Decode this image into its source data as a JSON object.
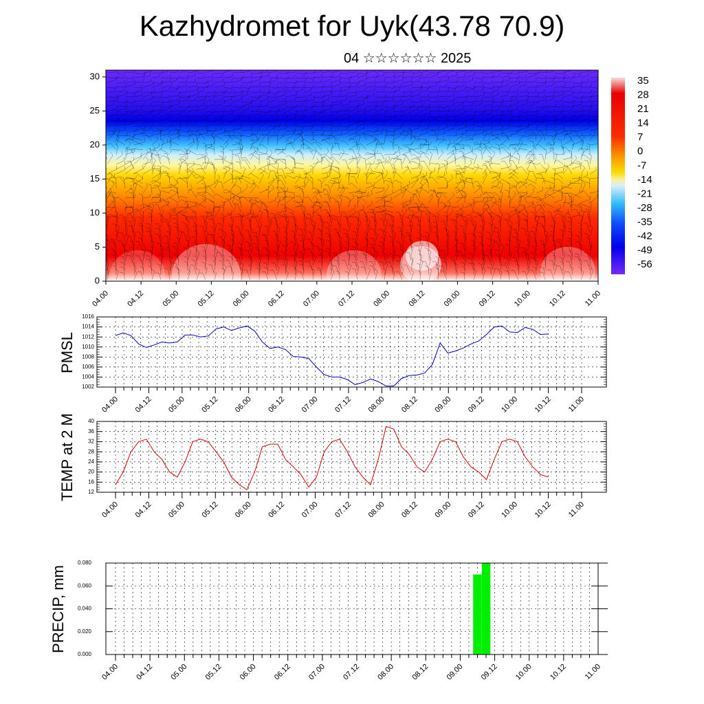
{
  "title": "Kazhydromet for Uyk(43.78 70.9)",
  "subtitle": "04 ☆☆☆☆☆☆ 2025",
  "colors": {
    "pmsl": "#0000cc",
    "temp": "#dd0000",
    "precip": "#00ee00"
  },
  "x_ticks": [
    "04.00",
    "04.12",
    "05.00",
    "05.12",
    "06.00",
    "06.12",
    "07.00",
    "07.12",
    "08.00",
    "08.12",
    "09.00",
    "09.12",
    "10.00",
    "10.12",
    "11.00"
  ],
  "chart_data": [
    {
      "type": "heatmap",
      "yticks": [
        "0",
        "5",
        "10",
        "15",
        "20",
        "25",
        "30"
      ],
      "ylim": [
        0,
        31
      ],
      "colorbar_labels": [
        "35",
        "28",
        "21",
        "14",
        "7",
        "0",
        "-7",
        "-14",
        "-21",
        "-28",
        "-35",
        "-42",
        "-49",
        "-56"
      ],
      "layers": [
        {
          "level": 0,
          "temp": 32
        },
        {
          "level": 5,
          "temp": 22
        },
        {
          "level": 10,
          "temp": 10
        },
        {
          "level": 15,
          "temp": -8
        },
        {
          "level": 18,
          "temp": -25
        },
        {
          "level": 21,
          "temp": -45
        },
        {
          "level": 24,
          "temp": -58
        },
        {
          "level": 27,
          "temp": -52
        },
        {
          "level": 31,
          "temp": -52
        }
      ],
      "overlay": "wind barbs"
    },
    {
      "type": "line",
      "ylabel": "PMSL",
      "ylim": [
        1002,
        1016
      ],
      "yticks": [
        "1002",
        "1004",
        "1006",
        "1008",
        "1010",
        "1012",
        "1014",
        "1016"
      ],
      "series": [
        {
          "values": [
            1012.3,
            1012.8,
            1012.3,
            1010.6,
            1009.9,
            1010.4,
            1011.0,
            1010.8,
            1011.0,
            1012.4,
            1012.4,
            1012.0,
            1012.2,
            1013.6,
            1014.0,
            1013.3,
            1013.8,
            1014.2,
            1013.2,
            1011.0,
            1009.7,
            1010.0,
            1009.5,
            1008.1,
            1008.0,
            1007.7,
            1006.0,
            1004.5,
            1004.0,
            1004.0,
            1003.5,
            1002.5,
            1002.9,
            1003.6,
            1003.1,
            1002.2,
            1002.2,
            1003.7,
            1004.3,
            1004.4,
            1004.8,
            1006.5,
            1010.8,
            1008.8,
            1009.2,
            1009.8,
            1010.6,
            1011.2,
            1012.5,
            1014.0,
            1014.2,
            1013.0,
            1012.9,
            1013.9,
            1013.5,
            1012.5,
            1012.6
          ]
        }
      ]
    },
    {
      "type": "line",
      "ylabel": "TEMP at 2 M",
      "ylim": [
        12,
        40
      ],
      "yticks": [
        "12",
        "16",
        "20",
        "24",
        "28",
        "32",
        "36",
        "40"
      ],
      "series": [
        {
          "values": [
            15,
            20,
            28,
            32,
            33,
            28,
            25,
            20,
            18,
            24,
            32,
            33,
            32,
            28,
            24,
            18,
            15,
            13,
            20,
            30,
            31,
            31,
            25,
            22,
            19,
            14,
            18,
            28,
            32,
            33,
            28,
            22,
            18,
            15,
            25,
            38,
            37,
            30,
            27,
            22,
            20,
            25,
            32,
            33,
            32,
            26,
            22,
            20,
            17,
            25,
            32,
            33,
            32,
            26,
            22,
            19,
            18
          ]
        }
      ]
    },
    {
      "type": "bar",
      "ylabel": "PRECIP, mm",
      "ylim": [
        0,
        0.08
      ],
      "yticks": [
        "0.000",
        "0.020",
        "0.040",
        "0.060",
        "0.080"
      ],
      "bars": [
        {
          "x": 42,
          "value": 0.07
        },
        {
          "x": 43,
          "value": 0.08
        }
      ]
    }
  ]
}
